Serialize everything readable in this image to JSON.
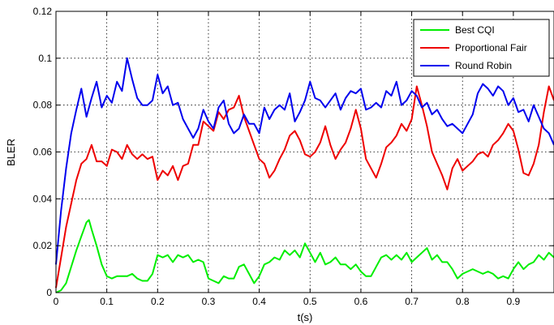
{
  "chart_data": {
    "type": "line",
    "title": "",
    "xlabel": "t(s)",
    "ylabel": "BLER",
    "xlim": [
      0,
      0.98
    ],
    "ylim": [
      0,
      0.12
    ],
    "xticks": [
      0,
      0.1,
      0.2,
      0.3,
      0.4,
      0.5,
      0.6,
      0.7,
      0.8,
      0.9
    ],
    "xtick_labels": [
      "0",
      "0.1",
      "0.2",
      "0.3",
      "0.4",
      "0.5",
      "0.6",
      "0.7",
      "0.8",
      "0.9"
    ],
    "yticks": [
      0,
      0.02,
      0.04,
      0.06,
      0.08,
      0.1,
      0.12
    ],
    "ytick_labels": [
      "0",
      "0.02",
      "0.04",
      "0.06",
      "0.08",
      "0.1",
      "0.12"
    ],
    "grid": true,
    "legend_position": "top-right",
    "series": [
      {
        "name": "Best CQI",
        "color": "#00ee00",
        "x": [
          0,
          0.01,
          0.02,
          0.03,
          0.04,
          0.05,
          0.06,
          0.065,
          0.07,
          0.08,
          0.09,
          0.1,
          0.11,
          0.12,
          0.13,
          0.14,
          0.15,
          0.16,
          0.17,
          0.18,
          0.19,
          0.2,
          0.21,
          0.22,
          0.23,
          0.24,
          0.25,
          0.26,
          0.27,
          0.28,
          0.29,
          0.3,
          0.31,
          0.32,
          0.33,
          0.34,
          0.35,
          0.36,
          0.37,
          0.38,
          0.39,
          0.4,
          0.41,
          0.42,
          0.43,
          0.44,
          0.45,
          0.46,
          0.47,
          0.48,
          0.49,
          0.5,
          0.51,
          0.52,
          0.53,
          0.54,
          0.55,
          0.56,
          0.57,
          0.58,
          0.59,
          0.6,
          0.61,
          0.62,
          0.63,
          0.64,
          0.65,
          0.66,
          0.67,
          0.68,
          0.69,
          0.7,
          0.71,
          0.72,
          0.73,
          0.74,
          0.75,
          0.76,
          0.77,
          0.78,
          0.79,
          0.8,
          0.81,
          0.82,
          0.83,
          0.84,
          0.85,
          0.86,
          0.87,
          0.88,
          0.89,
          0.9,
          0.91,
          0.92,
          0.93,
          0.94,
          0.95,
          0.96,
          0.97,
          0.98
        ],
        "values": [
          0,
          0.001,
          0.004,
          0.011,
          0.018,
          0.024,
          0.03,
          0.031,
          0.027,
          0.02,
          0.012,
          0.007,
          0.006,
          0.007,
          0.007,
          0.007,
          0.008,
          0.006,
          0.005,
          0.005,
          0.008,
          0.016,
          0.015,
          0.016,
          0.013,
          0.016,
          0.015,
          0.016,
          0.013,
          0.014,
          0.013,
          0.006,
          0.005,
          0.004,
          0.007,
          0.006,
          0.006,
          0.011,
          0.012,
          0.008,
          0.004,
          0.007,
          0.012,
          0.013,
          0.015,
          0.014,
          0.018,
          0.016,
          0.018,
          0.015,
          0.021,
          0.017,
          0.013,
          0.017,
          0.012,
          0.013,
          0.015,
          0.012,
          0.012,
          0.01,
          0.012,
          0.009,
          0.007,
          0.007,
          0.011,
          0.015,
          0.016,
          0.014,
          0.016,
          0.014,
          0.017,
          0.013,
          0.015,
          0.017,
          0.019,
          0.014,
          0.016,
          0.013,
          0.013,
          0.01,
          0.006,
          0.008,
          0.009,
          0.01,
          0.009,
          0.008,
          0.009,
          0.008,
          0.006,
          0.007,
          0.006,
          0.01,
          0.013,
          0.01,
          0.012,
          0.013,
          0.016,
          0.014,
          0.017,
          0.015
        ]
      },
      {
        "name": "Proportional Fair",
        "color": "#ee0000",
        "x": [
          0,
          0.01,
          0.02,
          0.03,
          0.04,
          0.05,
          0.06,
          0.07,
          0.08,
          0.09,
          0.1,
          0.11,
          0.12,
          0.13,
          0.14,
          0.15,
          0.16,
          0.17,
          0.18,
          0.19,
          0.2,
          0.21,
          0.22,
          0.23,
          0.24,
          0.25,
          0.26,
          0.27,
          0.28,
          0.29,
          0.3,
          0.31,
          0.32,
          0.33,
          0.34,
          0.35,
          0.36,
          0.37,
          0.38,
          0.39,
          0.4,
          0.41,
          0.42,
          0.43,
          0.44,
          0.45,
          0.46,
          0.47,
          0.48,
          0.49,
          0.5,
          0.51,
          0.52,
          0.53,
          0.54,
          0.55,
          0.56,
          0.57,
          0.58,
          0.59,
          0.6,
          0.61,
          0.62,
          0.63,
          0.64,
          0.65,
          0.66,
          0.67,
          0.68,
          0.69,
          0.7,
          0.71,
          0.72,
          0.73,
          0.74,
          0.75,
          0.76,
          0.77,
          0.78,
          0.79,
          0.8,
          0.81,
          0.82,
          0.83,
          0.84,
          0.85,
          0.86,
          0.87,
          0.88,
          0.89,
          0.9,
          0.91,
          0.92,
          0.93,
          0.94,
          0.95,
          0.96,
          0.97,
          0.98
        ],
        "values": [
          0.002,
          0.015,
          0.028,
          0.038,
          0.048,
          0.055,
          0.057,
          0.063,
          0.056,
          0.056,
          0.054,
          0.061,
          0.06,
          0.057,
          0.063,
          0.059,
          0.057,
          0.059,
          0.057,
          0.058,
          0.048,
          0.052,
          0.05,
          0.054,
          0.048,
          0.054,
          0.055,
          0.063,
          0.063,
          0.073,
          0.071,
          0.069,
          0.077,
          0.074,
          0.078,
          0.079,
          0.084,
          0.075,
          0.069,
          0.063,
          0.057,
          0.055,
          0.049,
          0.052,
          0.057,
          0.061,
          0.067,
          0.069,
          0.065,
          0.059,
          0.058,
          0.06,
          0.064,
          0.071,
          0.063,
          0.057,
          0.061,
          0.064,
          0.07,
          0.078,
          0.07,
          0.057,
          0.053,
          0.049,
          0.055,
          0.062,
          0.064,
          0.067,
          0.072,
          0.069,
          0.074,
          0.088,
          0.08,
          0.071,
          0.06,
          0.055,
          0.05,
          0.044,
          0.053,
          0.057,
          0.052,
          0.054,
          0.056,
          0.059,
          0.06,
          0.058,
          0.063,
          0.065,
          0.068,
          0.072,
          0.069,
          0.061,
          0.051,
          0.05,
          0.055,
          0.063,
          0.077,
          0.088,
          0.082
        ]
      },
      {
        "name": "Round Robin",
        "color": "#0000ee",
        "x": [
          0,
          0.01,
          0.02,
          0.03,
          0.04,
          0.05,
          0.06,
          0.07,
          0.08,
          0.09,
          0.1,
          0.11,
          0.12,
          0.13,
          0.14,
          0.15,
          0.16,
          0.17,
          0.18,
          0.19,
          0.2,
          0.21,
          0.22,
          0.23,
          0.24,
          0.25,
          0.26,
          0.27,
          0.28,
          0.29,
          0.3,
          0.31,
          0.32,
          0.33,
          0.34,
          0.35,
          0.36,
          0.37,
          0.38,
          0.39,
          0.4,
          0.41,
          0.42,
          0.43,
          0.44,
          0.45,
          0.46,
          0.47,
          0.48,
          0.49,
          0.5,
          0.51,
          0.52,
          0.53,
          0.54,
          0.55,
          0.56,
          0.57,
          0.58,
          0.59,
          0.6,
          0.61,
          0.62,
          0.63,
          0.64,
          0.65,
          0.66,
          0.67,
          0.68,
          0.69,
          0.7,
          0.71,
          0.72,
          0.73,
          0.74,
          0.75,
          0.76,
          0.77,
          0.78,
          0.79,
          0.8,
          0.81,
          0.82,
          0.83,
          0.84,
          0.85,
          0.86,
          0.87,
          0.88,
          0.89,
          0.9,
          0.91,
          0.92,
          0.93,
          0.94,
          0.95,
          0.96,
          0.97,
          0.98
        ],
        "values": [
          0.012,
          0.035,
          0.053,
          0.068,
          0.078,
          0.087,
          0.075,
          0.083,
          0.09,
          0.079,
          0.084,
          0.081,
          0.09,
          0.086,
          0.1,
          0.091,
          0.083,
          0.08,
          0.08,
          0.082,
          0.093,
          0.085,
          0.088,
          0.08,
          0.081,
          0.074,
          0.07,
          0.066,
          0.07,
          0.078,
          0.073,
          0.07,
          0.079,
          0.082,
          0.072,
          0.068,
          0.07,
          0.076,
          0.072,
          0.072,
          0.068,
          0.079,
          0.074,
          0.078,
          0.08,
          0.078,
          0.085,
          0.073,
          0.077,
          0.082,
          0.09,
          0.083,
          0.082,
          0.079,
          0.082,
          0.085,
          0.078,
          0.083,
          0.086,
          0.085,
          0.087,
          0.078,
          0.079,
          0.081,
          0.079,
          0.086,
          0.084,
          0.09,
          0.08,
          0.082,
          0.086,
          0.084,
          0.079,
          0.081,
          0.076,
          0.078,
          0.074,
          0.071,
          0.072,
          0.07,
          0.068,
          0.072,
          0.076,
          0.085,
          0.089,
          0.087,
          0.084,
          0.088,
          0.086,
          0.08,
          0.083,
          0.077,
          0.078,
          0.073,
          0.08,
          0.075,
          0.07,
          0.068,
          0.063
        ]
      }
    ]
  }
}
